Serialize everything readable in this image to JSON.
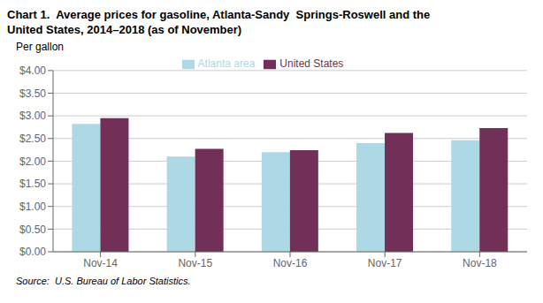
{
  "chart_data": {
    "type": "bar",
    "title": "Chart 1.  Average prices for gasoline, Atlanta-Sandy  Springs-Roswell and the\nUnited States, 2014–2018 (as of November)",
    "y_label": "Per gallon",
    "source": "Source:  U.S. Bureau of Labor Statistics.",
    "categories": [
      "Nov-14",
      "Nov-15",
      "Nov-16",
      "Nov-17",
      "Nov-18"
    ],
    "series": [
      {
        "name": "Atlanta area",
        "color": "#add8e6",
        "values": [
          2.82,
          2.1,
          2.2,
          2.4,
          2.46
        ]
      },
      {
        "name": "United States",
        "color": "#722f57",
        "values": [
          2.95,
          2.27,
          2.24,
          2.62,
          2.73
        ]
      }
    ],
    "ylim": [
      0,
      4.0
    ],
    "yticks": [
      {
        "value": 0,
        "label": "$0.00"
      },
      {
        "value": 0.5,
        "label": "$0.50"
      },
      {
        "value": 1.0,
        "label": "$1.00"
      },
      {
        "value": 1.5,
        "label": "$1.50"
      },
      {
        "value": 2.0,
        "label": "$2.00"
      },
      {
        "value": 2.5,
        "label": "$2.50"
      },
      {
        "value": 3.0,
        "label": "$3.00"
      },
      {
        "value": 3.5,
        "label": "$3.50"
      },
      {
        "value": 4.0,
        "label": "$4.00"
      }
    ],
    "grid": true,
    "legend": "top"
  }
}
